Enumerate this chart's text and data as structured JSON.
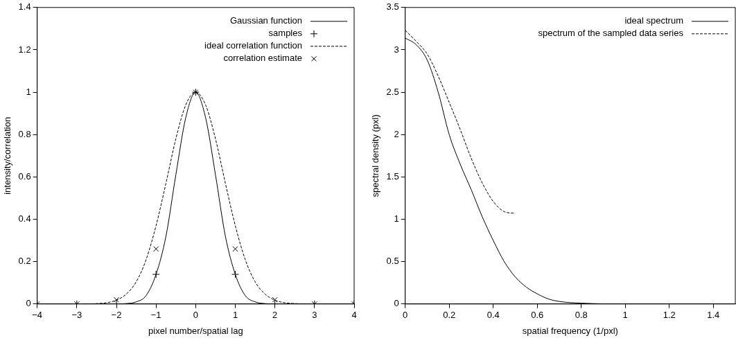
{
  "chart_data": [
    {
      "type": "line",
      "xlabel": "pixel number/spatial lag",
      "ylabel": "intensity/correlation",
      "xlim": [
        -4,
        4
      ],
      "ylim": [
        0,
        1.4
      ],
      "xticks": [
        {
          "value": -4,
          "label": "−4"
        },
        {
          "value": -3,
          "label": "−3"
        },
        {
          "value": -2,
          "label": "−2"
        },
        {
          "value": -1,
          "label": "−1"
        },
        0,
        1,
        2,
        3,
        4
      ],
      "yticks": [
        0,
        0.2,
        0.4,
        0.6,
        0.8,
        1,
        1.2,
        1.4
      ],
      "grid": false,
      "legend": "top right",
      "series": [
        {
          "name": "Gaussian function",
          "type": "line",
          "color": "#000000",
          "line_style": "solid",
          "marker": "none",
          "x": [
            -4,
            -2,
            -1.75,
            -1.5,
            -1.25,
            -1,
            -0.75,
            -0.5,
            -0.25,
            0,
            0.25,
            0.5,
            0.75,
            1,
            1.25,
            1.5,
            1.75,
            2,
            4
          ],
          "values": [
            0,
            0,
            0.002,
            0.01,
            0.04,
            0.14,
            0.32,
            0.61,
            0.88,
            1,
            0.88,
            0.61,
            0.32,
            0.14,
            0.04,
            0.01,
            0.002,
            0,
            0
          ]
        },
        {
          "name": "samples",
          "type": "scatter",
          "color": "#000000",
          "marker": "cross",
          "x": [
            -4,
            -3,
            -2,
            -1,
            0,
            1,
            2,
            3,
            4
          ],
          "values": [
            0,
            0,
            0,
            0.14,
            1,
            0.14,
            0,
            0,
            0
          ]
        },
        {
          "name": "ideal correlation function",
          "type": "line",
          "color": "#000000",
          "line_style": "dashed",
          "marker": "none",
          "x": [
            -4,
            -3,
            -2.5,
            -2.25,
            -2,
            -1.75,
            -1.5,
            -1.25,
            -1,
            -0.75,
            -0.5,
            -0.25,
            0,
            0.25,
            0.5,
            0.75,
            1,
            1.25,
            1.5,
            1.75,
            2,
            2.25,
            2.5,
            3,
            4
          ],
          "values": [
            0,
            0,
            0.002,
            0.006,
            0.018,
            0.047,
            0.105,
            0.21,
            0.37,
            0.57,
            0.78,
            0.94,
            1,
            0.94,
            0.78,
            0.57,
            0.37,
            0.21,
            0.105,
            0.047,
            0.018,
            0.006,
            0.002,
            0,
            0
          ]
        },
        {
          "name": "correlation estimate",
          "type": "scatter",
          "color": "#000000",
          "marker": "x",
          "x": [
            -4,
            -3,
            -2,
            -1,
            0,
            1,
            2,
            3,
            4
          ],
          "values": [
            0,
            0,
            0.02,
            0.26,
            1,
            0.26,
            0.02,
            0,
            0
          ]
        }
      ]
    },
    {
      "type": "line",
      "xlabel": "spatial frequency (1/pxl)",
      "ylabel": "spectral density (pxl)",
      "xlim": [
        0,
        1.5
      ],
      "ylim": [
        0,
        3.5
      ],
      "xticks": [
        0,
        0.2,
        0.4,
        0.6,
        0.8,
        1,
        1.2,
        1.4
      ],
      "yticks": [
        0,
        0.5,
        1,
        1.5,
        2,
        2.5,
        3,
        3.5
      ],
      "grid": false,
      "legend": "top right",
      "series": [
        {
          "name": "ideal spectrum",
          "type": "line",
          "color": "#000000",
          "line_style": "solid",
          "marker": "none",
          "x": [
            0,
            0.05,
            0.1,
            0.15,
            0.2,
            0.25,
            0.3,
            0.35,
            0.4,
            0.45,
            0.5,
            0.55,
            0.6,
            0.65,
            0.7,
            0.8,
            1,
            1.5
          ],
          "values": [
            3.14,
            3.06,
            2.88,
            2.5,
            2.0,
            1.65,
            1.35,
            1.03,
            0.75,
            0.5,
            0.32,
            0.2,
            0.12,
            0.06,
            0.03,
            0.01,
            0,
            0
          ]
        },
        {
          "name": "spectrum of the sampled data series",
          "type": "line",
          "color": "#000000",
          "line_style": "dashed",
          "marker": "none",
          "x": [
            0,
            0.05,
            0.1,
            0.15,
            0.2,
            0.25,
            0.3,
            0.35,
            0.4,
            0.45,
            0.5
          ],
          "values": [
            3.23,
            3.1,
            2.95,
            2.69,
            2.38,
            2.06,
            1.72,
            1.43,
            1.21,
            1.09,
            1.07
          ]
        }
      ]
    }
  ]
}
